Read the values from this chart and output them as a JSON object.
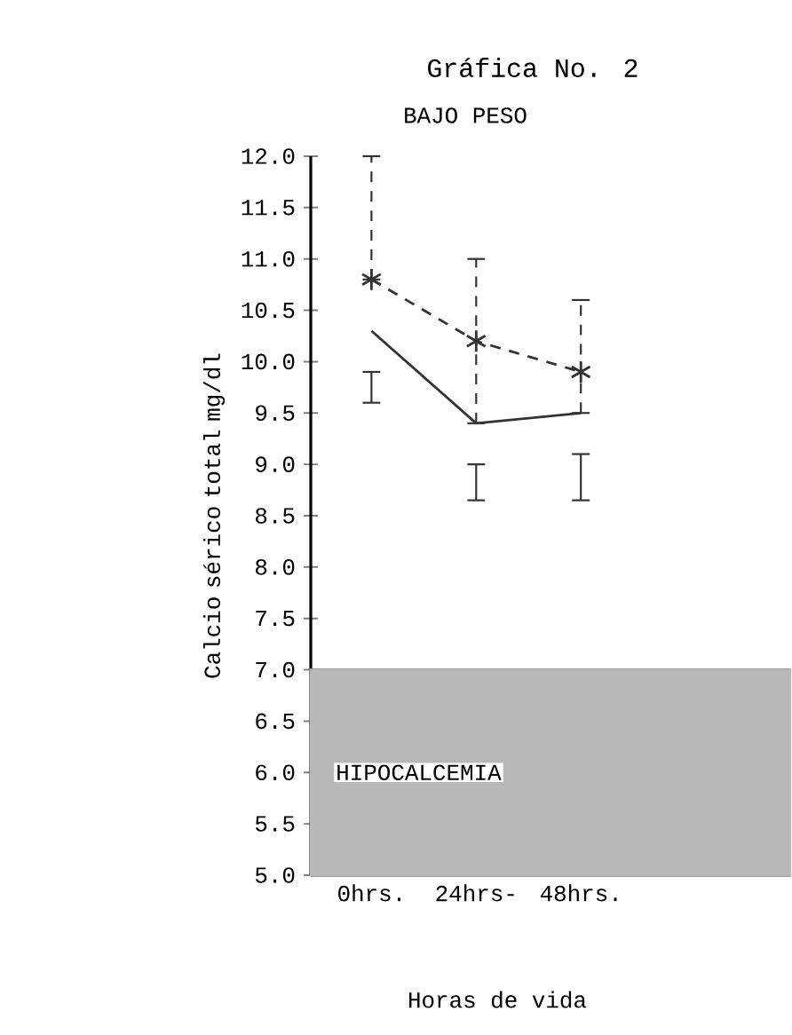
{
  "chart_data": {
    "type": "line",
    "title": "Gráfica No. 2",
    "subtitle": "BAJO PESO",
    "xlabel": "Horas de vida",
    "ylabel": "Calcio sérico total mg/dl",
    "categories": [
      "0hrs.",
      "24hrs-",
      "48hrs."
    ],
    "series": [
      {
        "color": "#333333",
        "values": [
          10.8,
          10.2,
          9.9
        ],
        "marker": "cross",
        "line_style": "dashed",
        "errors": [
          [
            10.8,
            12.0
          ],
          [
            9.4,
            11.0
          ],
          [
            9.5,
            10.6
          ]
        ]
      },
      {
        "color": "#333333",
        "values": [
          10.3,
          9.4,
          9.5
        ],
        "marker": "none",
        "line_style": "solid",
        "errors": [
          [
            9.6,
            9.9
          ],
          [
            8.65,
            9.0
          ],
          [
            8.65,
            9.1
          ]
        ]
      }
    ],
    "ylim": [
      5.0,
      12.0
    ],
    "yticks": [
      {
        "value": 5.0,
        "label": "5.0"
      },
      {
        "value": 5.5,
        "label": "5.5"
      },
      {
        "value": 6.0,
        "label": "6.0"
      },
      {
        "value": 6.5,
        "label": "6.5"
      },
      {
        "value": 7.0,
        "label": "7.0"
      },
      {
        "value": 7.5,
        "label": "7.5"
      },
      {
        "value": 8.0,
        "label": "8.0"
      },
      {
        "value": 8.5,
        "label": "8.5"
      },
      {
        "value": 9.0,
        "label": "9.0"
      },
      {
        "value": 9.5,
        "label": "9.5"
      },
      {
        "value": 10.0,
        "label": "10.0"
      },
      {
        "value": 10.5,
        "label": "10.5"
      },
      {
        "value": 11.0,
        "label": "11.0"
      },
      {
        "value": 11.5,
        "label": "11.5"
      },
      {
        "value": 12.0,
        "label": "12.0"
      }
    ],
    "bands": [
      {
        "axis": "y",
        "from": 5.0,
        "to": 7.0,
        "label": "HIPOCALCEMIA",
        "color": "#b8b8b8"
      }
    ]
  }
}
